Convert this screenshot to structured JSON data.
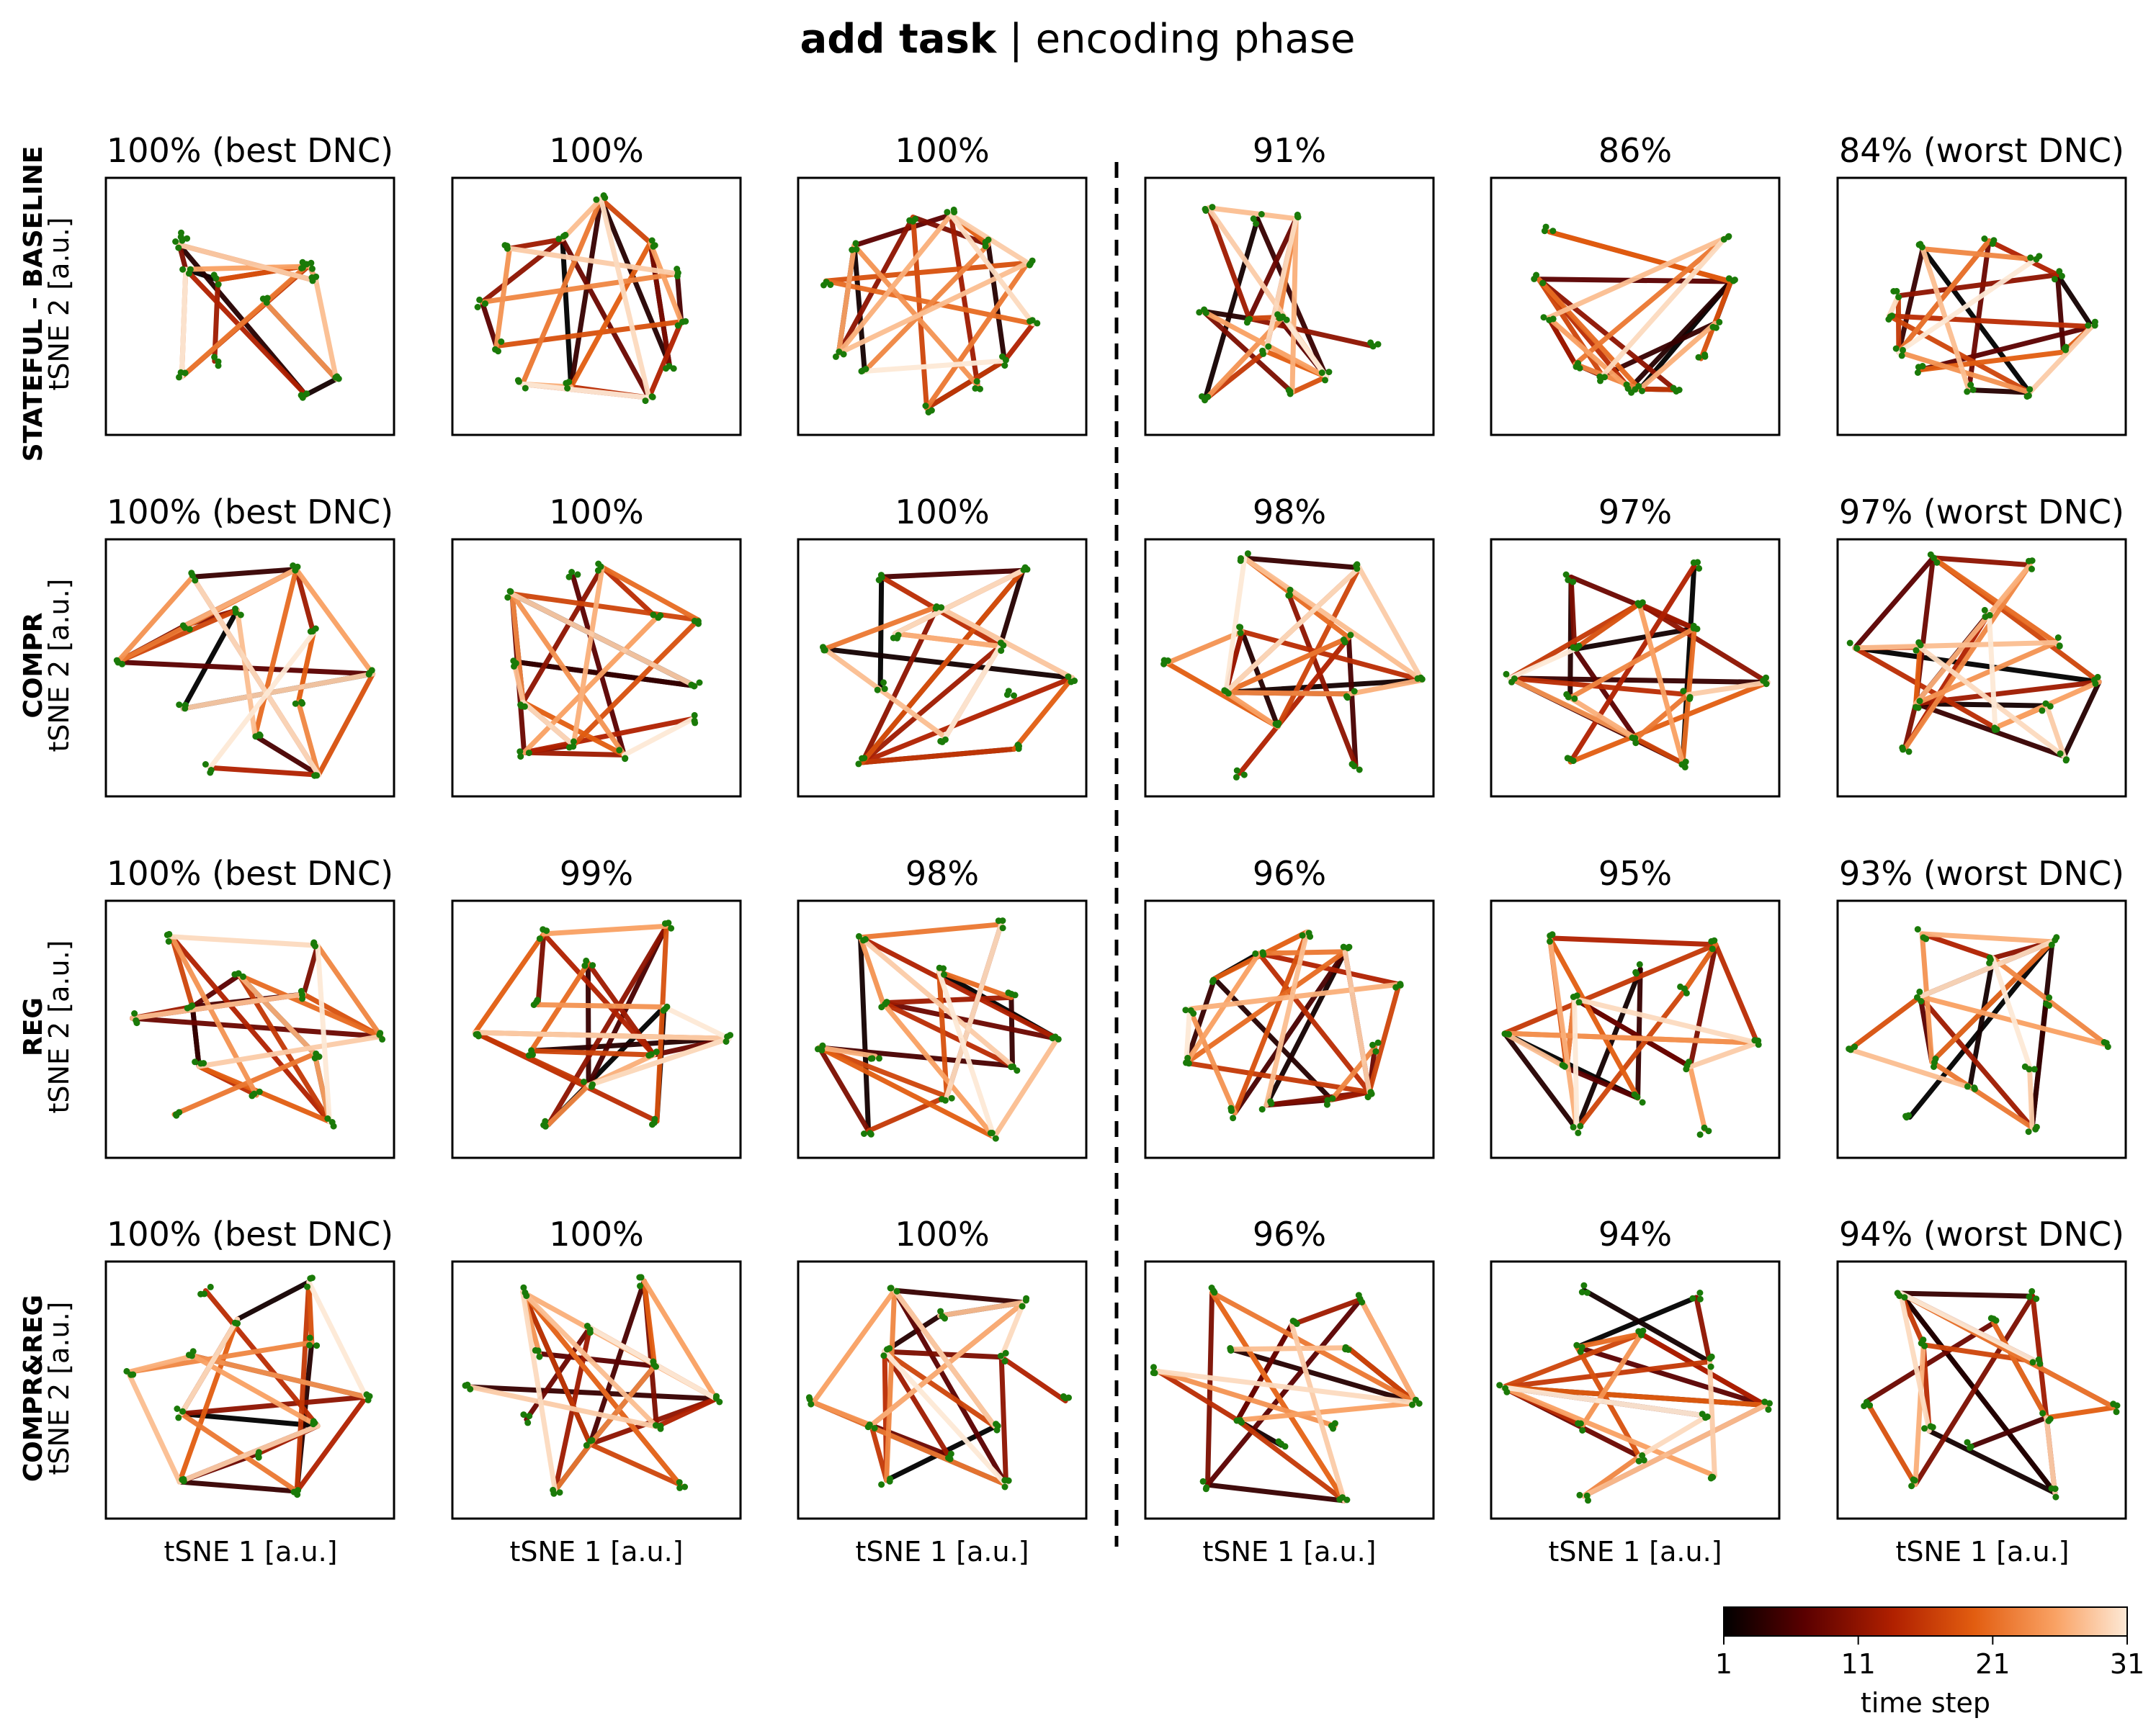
{
  "figure": {
    "title_bold": "add task",
    "title_rest": " | encoding phase",
    "xlabel": "tSNE 1 [a.u.]",
    "ylabel": "tSNE 2 [a.u.]",
    "colorbar": {
      "label": "time step",
      "ticks": [
        1,
        11,
        21,
        31
      ],
      "tick_labels": [
        "1",
        "11",
        "21",
        "31"
      ],
      "range": [
        1,
        31
      ],
      "colormap": "gist_heat (black → dark red → orange → cream)"
    },
    "colors": {
      "point": "#1a7a08",
      "cmap_stops": [
        "#000000",
        "#5a0000",
        "#b02000",
        "#e25d10",
        "#f9a163",
        "#fde9d6"
      ]
    }
  },
  "chart_data": {
    "type": "scatter",
    "description": "tSNE projections of memory trajectories; lines colored by time step (1-31), points in green",
    "rows": [
      {
        "name": "STATEFUL – BASELINE",
        "panels": [
          {
            "title": "100% (best DNC)",
            "accuracy": 100,
            "shape": "clusters5"
          },
          {
            "title": "100%",
            "accuracy": 100,
            "shape": "dense_triangle"
          },
          {
            "title": "100%",
            "accuracy": 100,
            "shape": "triangle_cluster"
          },
          {
            "title": "91%",
            "accuracy": 91,
            "shape": "blob_tail"
          },
          {
            "title": "86%",
            "accuracy": 86,
            "shape": "u_curve"
          },
          {
            "title": "84% (worst DNC)",
            "accuracy": 84,
            "shape": "heart"
          }
        ]
      },
      {
        "name": "COMPR",
        "panels": [
          {
            "title": "100% (best DNC)",
            "accuracy": 100,
            "shape": "star"
          },
          {
            "title": "100%",
            "accuracy": 100,
            "shape": "polygon_fan"
          },
          {
            "title": "100%",
            "accuracy": 100,
            "shape": "star"
          },
          {
            "title": "98%",
            "accuracy": 98,
            "shape": "star"
          },
          {
            "title": "97%",
            "accuracy": 97,
            "shape": "star"
          },
          {
            "title": "97% (worst DNC)",
            "accuracy": 97,
            "shape": "star"
          }
        ]
      },
      {
        "name": "REG",
        "panels": [
          {
            "title": "100% (best DNC)",
            "accuracy": 100,
            "shape": "star"
          },
          {
            "title": "99%",
            "accuracy": 99,
            "shape": "star"
          },
          {
            "title": "98%",
            "accuracy": 98,
            "shape": "star"
          },
          {
            "title": "96%",
            "accuracy": 96,
            "shape": "polygon_fan"
          },
          {
            "title": "95%",
            "accuracy": 95,
            "shape": "star"
          },
          {
            "title": "93% (worst DNC)",
            "accuracy": 93,
            "shape": "star"
          }
        ]
      },
      {
        "name": "COMPR&REG",
        "panels": [
          {
            "title": "100% (best DNC)",
            "accuracy": 100,
            "shape": "star"
          },
          {
            "title": "100%",
            "accuracy": 100,
            "shape": "star"
          },
          {
            "title": "100%",
            "accuracy": 100,
            "shape": "star"
          },
          {
            "title": "96%",
            "accuracy": 96,
            "shape": "star"
          },
          {
            "title": "94%",
            "accuracy": 94,
            "shape": "star"
          },
          {
            "title": "94% (worst DNC)",
            "accuracy": 94,
            "shape": "star"
          }
        ]
      }
    ]
  }
}
